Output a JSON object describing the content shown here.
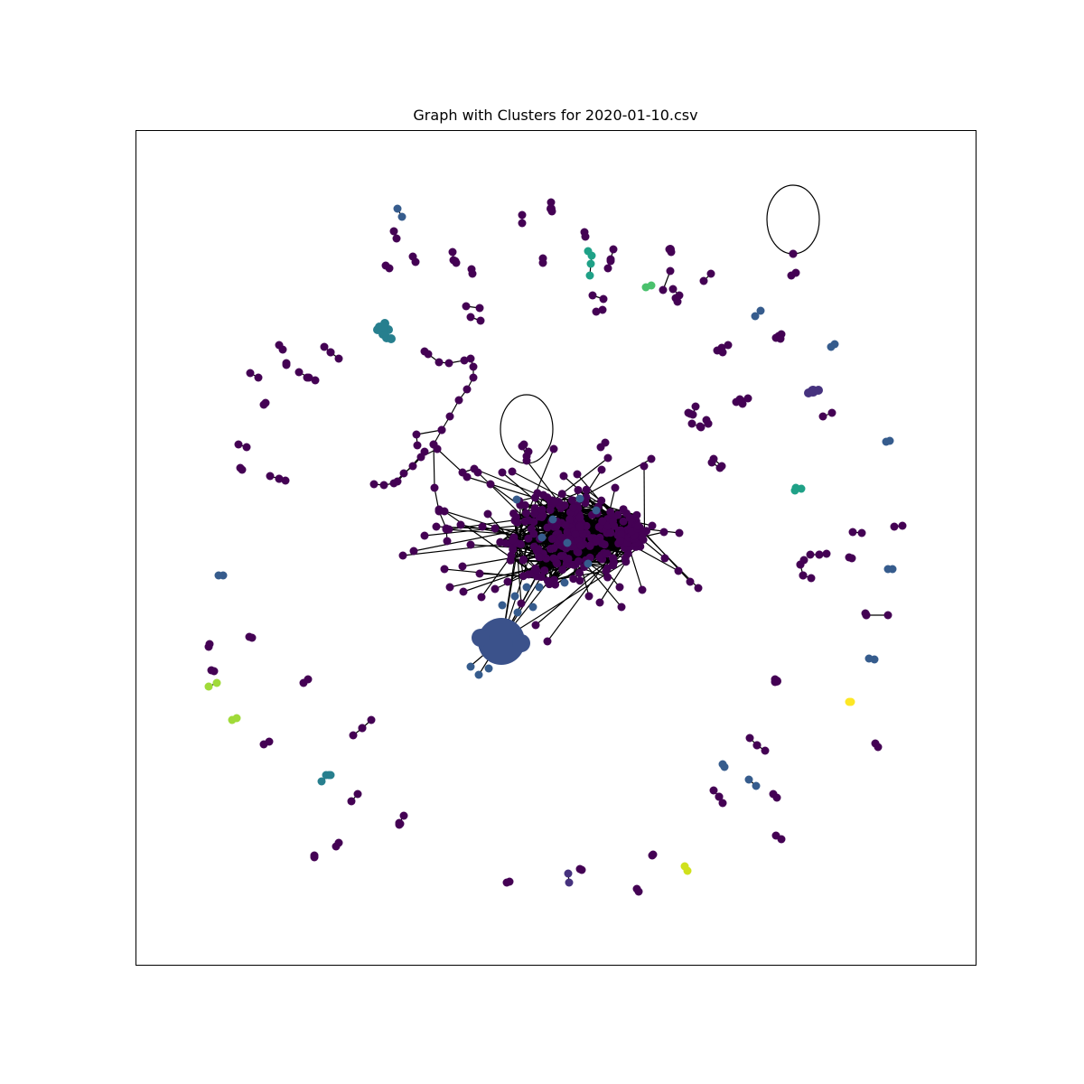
{
  "title": "Graph with Clusters for 2020-01-10.csv",
  "palette": {
    "c0": "#440154",
    "c1": "#46327e",
    "c2": "#365c8d",
    "c3": "#277f8e",
    "c4": "#1fa187",
    "c5": "#4ac16d",
    "c6": "#a0da39",
    "c7": "#fde725",
    "c8": "#d0e11c",
    "c9": "#3b528b",
    "edge": "#000000",
    "frame": "#000000"
  }
}
